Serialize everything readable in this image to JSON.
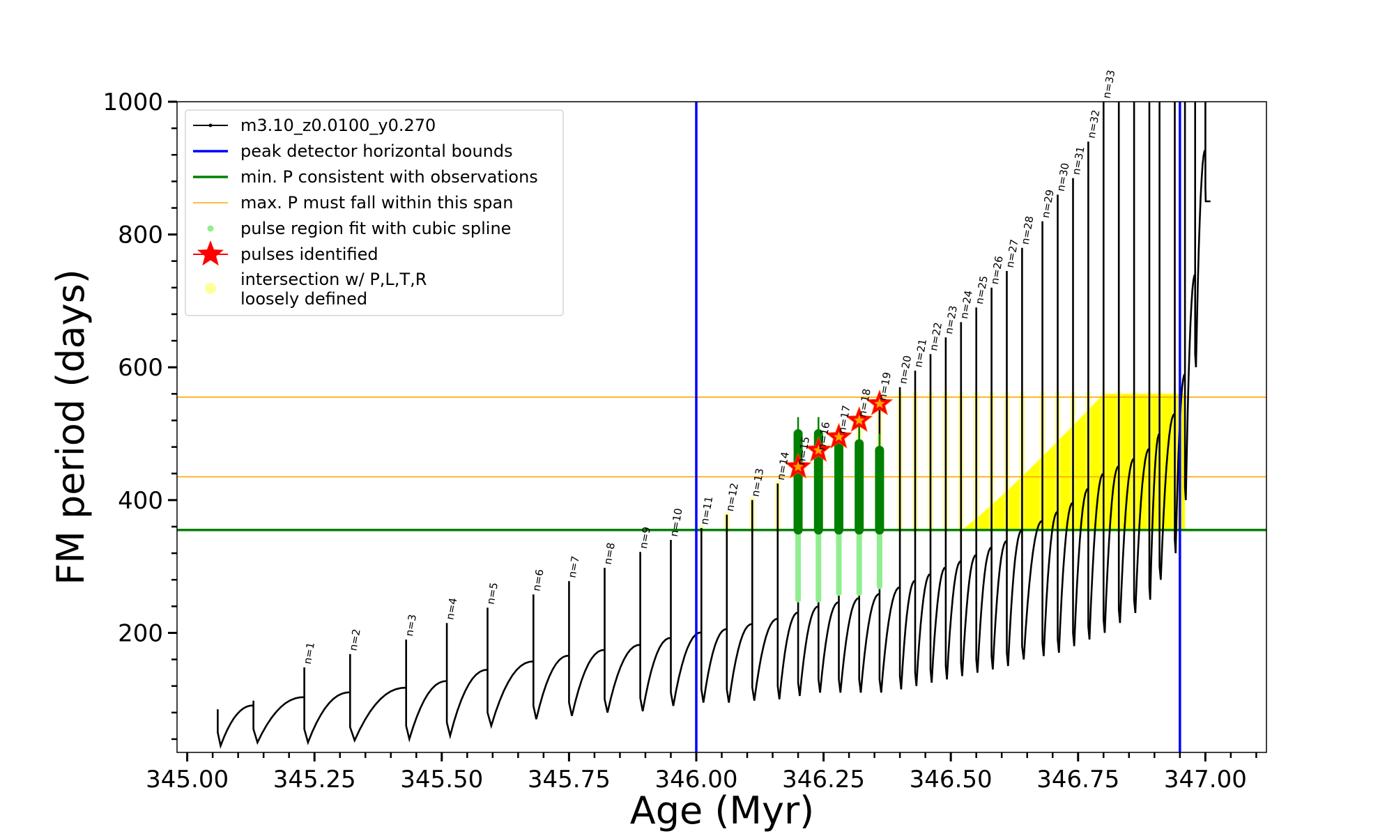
{
  "chart_data": {
    "type": "line",
    "xlabel": "Age (Myr)",
    "ylabel": "FM period (days)",
    "xlim": [
      344.98,
      347.12
    ],
    "ylim": [
      20,
      1000
    ],
    "x_ticks": [
      345.0,
      345.25,
      345.5,
      345.75,
      346.0,
      346.25,
      346.5,
      346.75,
      347.0
    ],
    "x_tick_labels": [
      "345.00",
      "345.25",
      "345.50",
      "345.75",
      "346.00",
      "346.25",
      "346.50",
      "346.75",
      "347.00"
    ],
    "y_ticks": [
      200,
      400,
      600,
      800,
      1000
    ],
    "y_tick_labels": [
      "200",
      "400",
      "600",
      "800",
      "1000"
    ],
    "legend_position": "top-left",
    "legend": [
      {
        "label": "m3.10_z0.0100_y0.270",
        "marker": "line-dot",
        "color": "#000000"
      },
      {
        "label": "peak detector horizontal bounds",
        "marker": "line",
        "color": "#0000ff"
      },
      {
        "label": "min. P consistent with observations",
        "marker": "line",
        "color": "#008000"
      },
      {
        "label": "max. P must fall within this span",
        "marker": "thin-line",
        "color": "#ffa500"
      },
      {
        "label": "pulse region fit with cubic spline",
        "marker": "dot",
        "color": "#90ee90"
      },
      {
        "label": "pulses identified",
        "marker": "star",
        "color": "#ff0000"
      },
      {
        "label": "intersection w/ P,L,T,R",
        "label2": "loosely defined",
        "marker": "circle",
        "color": "#ffff99"
      }
    ],
    "vertical_lines": [
      {
        "x": 346.0,
        "color": "#0000ff"
      },
      {
        "x": 346.95,
        "color": "#0000ff"
      }
    ],
    "horizontal_lines": [
      {
        "y": 355,
        "color": "#008000",
        "role": "min"
      },
      {
        "y": 435,
        "color": "#ffa500",
        "role": "span-low"
      },
      {
        "y": 555,
        "color": "#ffa500",
        "role": "span-high"
      }
    ],
    "series_model": {
      "name": "m3.10_z0.0100_y0.270",
      "color": "#000000",
      "pulses": [
        {
          "n": "",
          "x": 345.06,
          "base": 30,
          "peak": 85
        },
        {
          "n": "",
          "x": 345.13,
          "base": 35,
          "peak": 98
        },
        {
          "n": "n=1",
          "x": 345.23,
          "base": 35,
          "peak": 148
        },
        {
          "n": "n=2",
          "x": 345.32,
          "base": 38,
          "peak": 168
        },
        {
          "n": "n=3",
          "x": 345.43,
          "base": 40,
          "peak": 190
        },
        {
          "n": "n=4",
          "x": 345.51,
          "base": 45,
          "peak": 215
        },
        {
          "n": "n=5",
          "x": 345.59,
          "base": 60,
          "peak": 238
        },
        {
          "n": "n=6",
          "x": 345.68,
          "base": 70,
          "peak": 258
        },
        {
          "n": "n=7",
          "x": 345.75,
          "base": 75,
          "peak": 278
        },
        {
          "n": "n=8",
          "x": 345.82,
          "base": 80,
          "peak": 298
        },
        {
          "n": "n=9",
          "x": 345.89,
          "base": 82,
          "peak": 322
        },
        {
          "n": "n=10",
          "x": 345.95,
          "base": 90,
          "peak": 340
        },
        {
          "n": "n=11",
          "x": 346.01,
          "base": 95,
          "peak": 358
        },
        {
          "n": "n=12",
          "x": 346.06,
          "base": 95,
          "peak": 378
        },
        {
          "n": "n=13",
          "x": 346.11,
          "base": 98,
          "peak": 400
        },
        {
          "n": "n=14",
          "x": 346.16,
          "base": 100,
          "peak": 425
        },
        {
          "n": "n=15",
          "x": 346.2,
          "base": 105,
          "peak": 448
        },
        {
          "n": "n=16",
          "x": 346.24,
          "base": 110,
          "peak": 470
        },
        {
          "n": "n=17",
          "x": 346.28,
          "base": 110,
          "peak": 495
        },
        {
          "n": "n=18",
          "x": 346.32,
          "base": 110,
          "peak": 520
        },
        {
          "n": "n=19",
          "x": 346.36,
          "base": 110,
          "peak": 545
        },
        {
          "n": "n=20",
          "x": 346.4,
          "base": 115,
          "peak": 570
        },
        {
          "n": "n=21",
          "x": 346.43,
          "base": 120,
          "peak": 595
        },
        {
          "n": "n=22",
          "x": 346.46,
          "base": 125,
          "peak": 620
        },
        {
          "n": "n=23",
          "x": 346.49,
          "base": 130,
          "peak": 645
        },
        {
          "n": "n=24",
          "x": 346.52,
          "base": 135,
          "peak": 668
        },
        {
          "n": "n=25",
          "x": 346.55,
          "base": 140,
          "peak": 690
        },
        {
          "n": "n=26",
          "x": 346.58,
          "base": 145,
          "peak": 720
        },
        {
          "n": "n=27",
          "x": 346.61,
          "base": 150,
          "peak": 745
        },
        {
          "n": "n=28",
          "x": 346.64,
          "base": 160,
          "peak": 780
        },
        {
          "n": "n=29",
          "x": 346.68,
          "base": 165,
          "peak": 820
        },
        {
          "n": "n=30",
          "x": 346.71,
          "base": 170,
          "peak": 860
        },
        {
          "n": "n=31",
          "x": 346.74,
          "base": 180,
          "peak": 885
        },
        {
          "n": "n=32",
          "x": 346.77,
          "base": 190,
          "peak": 940
        },
        {
          "n": "n=33",
          "x": 346.8,
          "base": 200,
          "peak": 1000
        },
        {
          "n": "",
          "x": 346.83,
          "base": 215,
          "peak": 1000
        },
        {
          "n": "",
          "x": 346.86,
          "base": 230,
          "peak": 1000
        },
        {
          "n": "",
          "x": 346.89,
          "base": 250,
          "peak": 1000
        },
        {
          "n": "",
          "x": 346.91,
          "base": 280,
          "peak": 1000
        },
        {
          "n": "",
          "x": 346.94,
          "base": 320,
          "peak": 1000
        },
        {
          "n": "",
          "x": 346.96,
          "base": 400,
          "peak": 1000
        },
        {
          "n": "",
          "x": 346.98,
          "base": 600,
          "peak": 1000
        },
        {
          "n": "",
          "x": 347.0,
          "base": 850,
          "peak": 1000
        }
      ]
    },
    "pulses_identified": [
      {
        "x": 346.2,
        "y": 450
      },
      {
        "x": 346.24,
        "y": 475
      },
      {
        "x": 346.28,
        "y": 495
      },
      {
        "x": 346.32,
        "y": 520
      },
      {
        "x": 346.36,
        "y": 545
      }
    ],
    "spline_fit_regions": [
      {
        "x": 346.2,
        "y_low": 250,
        "y_high": 525
      },
      {
        "x": 346.24,
        "y_low": 250,
        "y_high": 525
      },
      {
        "x": 346.28,
        "y_low": 260,
        "y_high": 505
      },
      {
        "x": 346.32,
        "y_low": 260,
        "y_high": 510
      },
      {
        "x": 346.36,
        "y_low": 270,
        "y_high": 500
      }
    ],
    "intersection_region": {
      "y_min": 355,
      "y_max": 560,
      "pulse_columns_x": [
        346.01,
        346.06,
        346.11,
        346.16,
        346.2,
        346.24,
        346.28,
        346.32,
        346.36,
        346.4,
        346.43,
        346.46,
        346.49,
        346.52,
        346.55,
        346.58,
        346.61,
        346.64,
        346.68,
        346.71,
        346.74,
        346.77,
        346.8,
        346.83,
        346.86,
        346.89,
        346.91,
        346.94
      ],
      "dense_band_x": [
        346.52,
        346.96
      ]
    }
  }
}
